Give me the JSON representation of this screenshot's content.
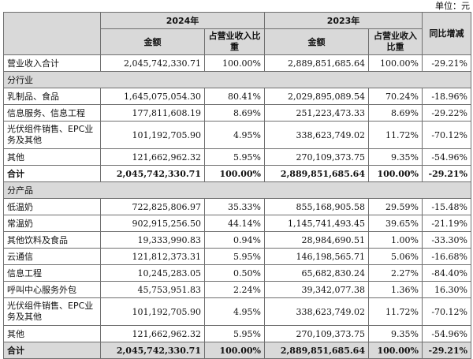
{
  "unit_label": "单位：元",
  "header": {
    "year_2024": "2024年",
    "year_2023": "2023年",
    "amount": "金额",
    "share": "占营业收入比重",
    "yoy": "同比增减"
  },
  "total_row": {
    "label": "营业收入合计",
    "amount_2024": "2,045,742,330.71",
    "share_2024": "100.00%",
    "amount_2023": "2,889,851,685.64",
    "share_2023": "100.00%",
    "yoy": "-29.21%"
  },
  "by_industry": {
    "title": "分行业",
    "rows": [
      {
        "label": "乳制品、食品",
        "amount_2024": "1,645,075,054.30",
        "share_2024": "80.41%",
        "amount_2023": "2,029,895,089.54",
        "share_2023": "70.24%",
        "yoy": "-18.96%"
      },
      {
        "label": "信息服务、信息工程",
        "amount_2024": "177,811,608.19",
        "share_2024": "8.69%",
        "amount_2023": "251,223,473.33",
        "share_2023": "8.69%",
        "yoy": "-29.22%"
      },
      {
        "label": "光伏组件销售、EPC业务及其他",
        "amount_2024": "101,192,705.90",
        "share_2024": "4.95%",
        "amount_2023": "338,623,749.02",
        "share_2023": "11.72%",
        "yoy": "-70.12%"
      },
      {
        "label": "其他",
        "amount_2024": "121,662,962.32",
        "share_2024": "5.95%",
        "amount_2023": "270,109,373.75",
        "share_2023": "9.35%",
        "yoy": "-54.96%"
      }
    ],
    "subtotal": {
      "label": "合计",
      "amount_2024": "2,045,742,330.71",
      "share_2024": "100.00%",
      "amount_2023": "2,889,851,685.64",
      "share_2023": "100.00%",
      "yoy": "-29.21%"
    }
  },
  "by_product": {
    "title": "分产品",
    "rows": [
      {
        "label": "低温奶",
        "amount_2024": "722,825,806.97",
        "share_2024": "35.33%",
        "amount_2023": "855,168,905.58",
        "share_2023": "29.59%",
        "yoy": "-15.48%"
      },
      {
        "label": "常温奶",
        "amount_2024": "902,915,256.50",
        "share_2024": "44.14%",
        "amount_2023": "1,145,741,493.45",
        "share_2023": "39.65%",
        "yoy": "-21.19%"
      },
      {
        "label": "其他饮料及食品",
        "amount_2024": "19,333,990.83",
        "share_2024": "0.94%",
        "amount_2023": "28,984,690.51",
        "share_2023": "1.00%",
        "yoy": "-33.30%"
      },
      {
        "label": "云通信",
        "amount_2024": "121,812,373.31",
        "share_2024": "5.95%",
        "amount_2023": "146,198,565.71",
        "share_2023": "5.06%",
        "yoy": "-16.68%"
      },
      {
        "label": "信息工程",
        "amount_2024": "10,245,283.05",
        "share_2024": "0.50%",
        "amount_2023": "65,682,830.24",
        "share_2023": "2.27%",
        "yoy": "-84.40%"
      },
      {
        "label": "呼叫中心服务外包",
        "amount_2024": "45,753,951.83",
        "share_2024": "2.24%",
        "amount_2023": "39,342,077.38",
        "share_2023": "1.36%",
        "yoy": "16.30%"
      },
      {
        "label": "光伏组件销售、EPC业务及其他",
        "amount_2024": "101,192,705.90",
        "share_2024": "4.95%",
        "amount_2023": "338,623,749.02",
        "share_2023": "11.72%",
        "yoy": "-70.12%"
      },
      {
        "label": "其他",
        "amount_2024": "121,662,962.32",
        "share_2024": "5.95%",
        "amount_2023": "270,109,373.75",
        "share_2023": "9.35%",
        "yoy": "-54.96%"
      }
    ],
    "subtotal": {
      "label": "合计",
      "amount_2024": "2,045,742,330.71",
      "share_2024": "100.00%",
      "amount_2023": "2,889,851,685.64",
      "share_2023": "100.00%",
      "yoy": "-29.21%"
    }
  }
}
